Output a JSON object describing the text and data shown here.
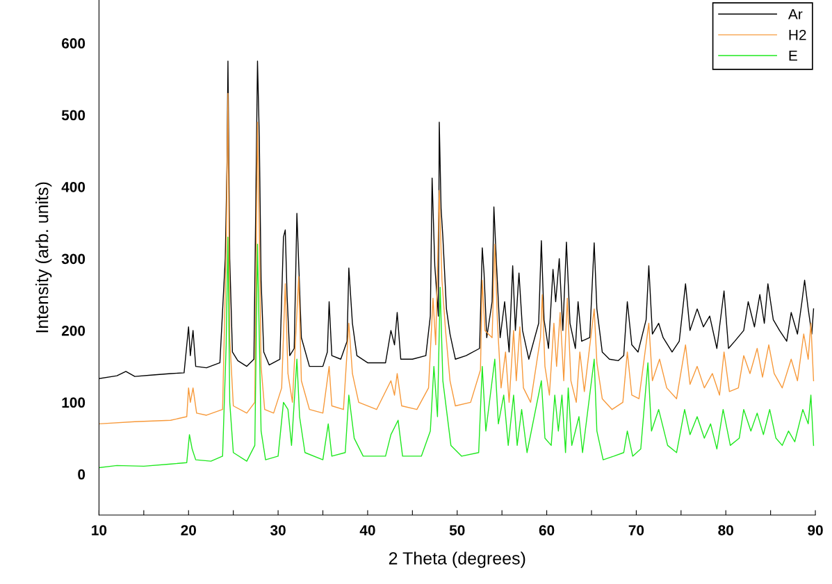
{
  "chart_data": {
    "type": "line",
    "xlabel": "2 Theta (degrees)",
    "ylabel": "Intensity (arb. units)",
    "xlim": [
      10,
      90
    ],
    "ylim": [
      -57,
      660
    ],
    "xticks": [
      10,
      {
        "value": 15,
        "label": null
      },
      20,
      {
        "value": 25,
        "label": null
      },
      30,
      {
        "value": 35,
        "label": null
      },
      40,
      {
        "value": 45,
        "label": null
      },
      50,
      {
        "value": 55,
        "label": null
      },
      60,
      {
        "value": 65,
        "label": null
      },
      70,
      {
        "value": 75,
        "label": null
      },
      80,
      {
        "value": 85,
        "label": null
      },
      90
    ],
    "yticks": [
      0,
      100,
      200,
      300,
      400,
      500,
      600
    ],
    "grid": false,
    "legend": "top right",
    "marker": "none",
    "line_style": "solid",
    "series": [
      {
        "name": "Ar",
        "color": "#000000",
        "x": [
          10,
          12,
          13,
          14,
          16,
          18,
          19.5,
          20.0,
          20.2,
          20.5,
          20.8,
          22,
          23.5,
          24.1,
          24.3,
          24.4,
          24.6,
          24.9,
          25.5,
          26.5,
          27.3,
          27.7,
          27.9,
          28.1,
          28.4,
          29,
          30.2,
          30.6,
          30.8,
          31.0,
          31.3,
          31.8,
          32.1,
          32.6,
          33.5,
          35,
          35.5,
          35.7,
          36.0,
          37,
          37.7,
          37.9,
          38.3,
          38.8,
          40,
          42,
          42.6,
          43.0,
          43.3,
          43.7,
          45,
          46.5,
          47.0,
          47.2,
          47.5,
          47.9,
          48.0,
          48.2,
          48.4,
          48.8,
          49.2,
          49.8,
          51,
          52.5,
          52.8,
          53.0,
          53.3,
          53.9,
          54.1,
          54.4,
          54.8,
          55.3,
          55.8,
          56.2,
          56.5,
          56.9,
          57.3,
          58,
          59.1,
          59.4,
          59.7,
          60.2,
          60.7,
          61.0,
          61.4,
          61.8,
          62.2,
          62.6,
          63.2,
          63.5,
          63.9,
          64.8,
          65.3,
          65.6,
          66.2,
          67,
          68,
          68.6,
          69.0,
          69.5,
          70.2,
          71.1,
          71.4,
          71.8,
          72.5,
          73,
          74,
          74.8,
          75.5,
          76,
          76.8,
          77.5,
          78.2,
          79,
          79.8,
          80.3,
          81,
          82,
          82.5,
          83.2,
          83.8,
          84.3,
          84.7,
          85.3,
          86,
          86.8,
          87.3,
          88.0,
          88.5,
          88.8,
          89.2,
          89.6,
          89.8
        ],
        "values": [
          133,
          137,
          143,
          136,
          138,
          140,
          141,
          205,
          165,
          200,
          150,
          148,
          155,
          300,
          435,
          575,
          300,
          170,
          158,
          150,
          160,
          575,
          470,
          270,
          170,
          152,
          160,
          330,
          340,
          250,
          165,
          175,
          363,
          190,
          150,
          150,
          170,
          240,
          165,
          160,
          185,
          287,
          210,
          165,
          155,
          155,
          200,
          180,
          225,
          160,
          160,
          165,
          220,
          412,
          290,
          220,
          490,
          370,
          330,
          230,
          195,
          160,
          165,
          175,
          315,
          280,
          190,
          240,
          372,
          290,
          190,
          240,
          170,
          290,
          200,
          280,
          200,
          160,
          210,
          325,
          215,
          175,
          285,
          240,
          300,
          200,
          323,
          210,
          175,
          240,
          185,
          190,
          322,
          230,
          170,
          160,
          158,
          165,
          240,
          180,
          170,
          215,
          290,
          195,
          210,
          190,
          170,
          185,
          265,
          200,
          230,
          205,
          220,
          175,
          255,
          175,
          185,
          200,
          240,
          205,
          250,
          210,
          265,
          215,
          200,
          185,
          225,
          195,
          240,
          270,
          230,
          195,
          230
        ]
      },
      {
        "name": "H2",
        "color": "#f7993a",
        "x": [
          10,
          14,
          18,
          19.8,
          20.0,
          20.2,
          20.5,
          20.9,
          22,
          23.8,
          24.2,
          24.4,
          24.6,
          25,
          26.5,
          27.4,
          27.7,
          27.9,
          28.1,
          28.5,
          29.5,
          30.4,
          30.8,
          31.1,
          31.6,
          32.0,
          32.3,
          32.6,
          33.5,
          35.0,
          35.7,
          36.0,
          37.3,
          37.9,
          38.3,
          39,
          41,
          42.6,
          43.0,
          43.3,
          43.8,
          45.5,
          46.8,
          47.3,
          47.6,
          48.0,
          48.3,
          48.7,
          49.2,
          49.8,
          51.5,
          52.6,
          52.8,
          53.1,
          53.9,
          54.2,
          54.5,
          54.9,
          55.4,
          55.8,
          56.3,
          56.6,
          57.0,
          57.4,
          58.2,
          59.3,
          59.5,
          59.8,
          60.3,
          60.8,
          61.1,
          61.5,
          61.9,
          62.3,
          62.7,
          63.3,
          63.7,
          64.2,
          65.3,
          65.6,
          66.2,
          67.3,
          68.5,
          69.0,
          69.5,
          70.3,
          71.4,
          71.8,
          72.6,
          73.4,
          74.5,
          75.5,
          76,
          76.8,
          77.6,
          78.5,
          79.3,
          79.8,
          80.4,
          81.4,
          82,
          82.7,
          83.5,
          84.1,
          84.8,
          85.4,
          86.3,
          87.3,
          88,
          88.7,
          89.2,
          89.5,
          89.8
        ],
        "values": [
          70,
          73,
          75,
          80,
          120,
          100,
          120,
          85,
          82,
          90,
          310,
          530,
          190,
          95,
          85,
          100,
          490,
          340,
          150,
          90,
          85,
          120,
          265,
          140,
          100,
          200,
          275,
          130,
          90,
          85,
          150,
          95,
          90,
          210,
          140,
          100,
          90,
          130,
          110,
          140,
          95,
          90,
          120,
          245,
          180,
          395,
          270,
          200,
          130,
          95,
          100,
          145,
          270,
          200,
          190,
          320,
          210,
          120,
          170,
          100,
          200,
          130,
          205,
          120,
          100,
          190,
          250,
          150,
          110,
          210,
          150,
          225,
          130,
          245,
          130,
          100,
          170,
          115,
          230,
          155,
          105,
          90,
          100,
          170,
          110,
          105,
          210,
          130,
          160,
          120,
          105,
          180,
          125,
          150,
          120,
          140,
          110,
          170,
          115,
          120,
          165,
          140,
          175,
          135,
          180,
          140,
          120,
          160,
          130,
          195,
          160,
          210,
          130
        ]
      },
      {
        "name": "E",
        "color": "#1ee81e",
        "x": [
          10,
          12,
          15,
          18,
          19.8,
          20.1,
          20.4,
          20.8,
          22.5,
          23.8,
          24.2,
          24.4,
          24.6,
          25,
          26.5,
          27.4,
          27.7,
          27.9,
          28.1,
          28.6,
          30,
          30.6,
          31.1,
          31.5,
          32.1,
          32.4,
          33,
          35,
          35.6,
          36,
          37.5,
          37.9,
          38.5,
          39.5,
          42,
          42.6,
          43.4,
          43.9,
          46,
          47,
          47.4,
          47.8,
          48.1,
          48.4,
          48.8,
          49.3,
          50.5,
          52.4,
          52.8,
          53.2,
          54.2,
          54.6,
          55.2,
          55.7,
          56.3,
          56.7,
          57.2,
          57.8,
          59.4,
          59.8,
          60.5,
          60.9,
          61.3,
          61.7,
          62.1,
          62.4,
          62.8,
          63.6,
          64,
          65.3,
          65.6,
          66.3,
          67.5,
          68.6,
          69,
          69.6,
          70.5,
          71.3,
          71.7,
          72.5,
          73.5,
          74.5,
          75.4,
          76,
          76.8,
          77.6,
          78.3,
          79,
          79.7,
          80.5,
          81.5,
          82,
          82.8,
          83.5,
          84.2,
          84.9,
          85.6,
          86.3,
          87,
          87.7,
          88.6,
          89.2,
          89.5,
          89.8
        ],
        "values": [
          9,
          12,
          11,
          14,
          16,
          55,
          35,
          20,
          18,
          25,
          180,
          330,
          100,
          30,
          18,
          40,
          320,
          190,
          60,
          20,
          25,
          100,
          90,
          40,
          160,
          80,
          30,
          20,
          70,
          25,
          30,
          110,
          50,
          25,
          25,
          55,
          75,
          25,
          25,
          60,
          150,
          80,
          260,
          130,
          90,
          40,
          25,
          30,
          150,
          60,
          160,
          70,
          110,
          40,
          110,
          40,
          90,
          30,
          130,
          50,
          40,
          110,
          60,
          110,
          30,
          120,
          40,
          80,
          30,
          160,
          60,
          20,
          25,
          30,
          60,
          25,
          35,
          155,
          60,
          90,
          40,
          30,
          90,
          55,
          80,
          50,
          70,
          35,
          90,
          40,
          50,
          90,
          60,
          85,
          55,
          90,
          50,
          40,
          60,
          45,
          90,
          70,
          110,
          40
        ]
      }
    ]
  }
}
